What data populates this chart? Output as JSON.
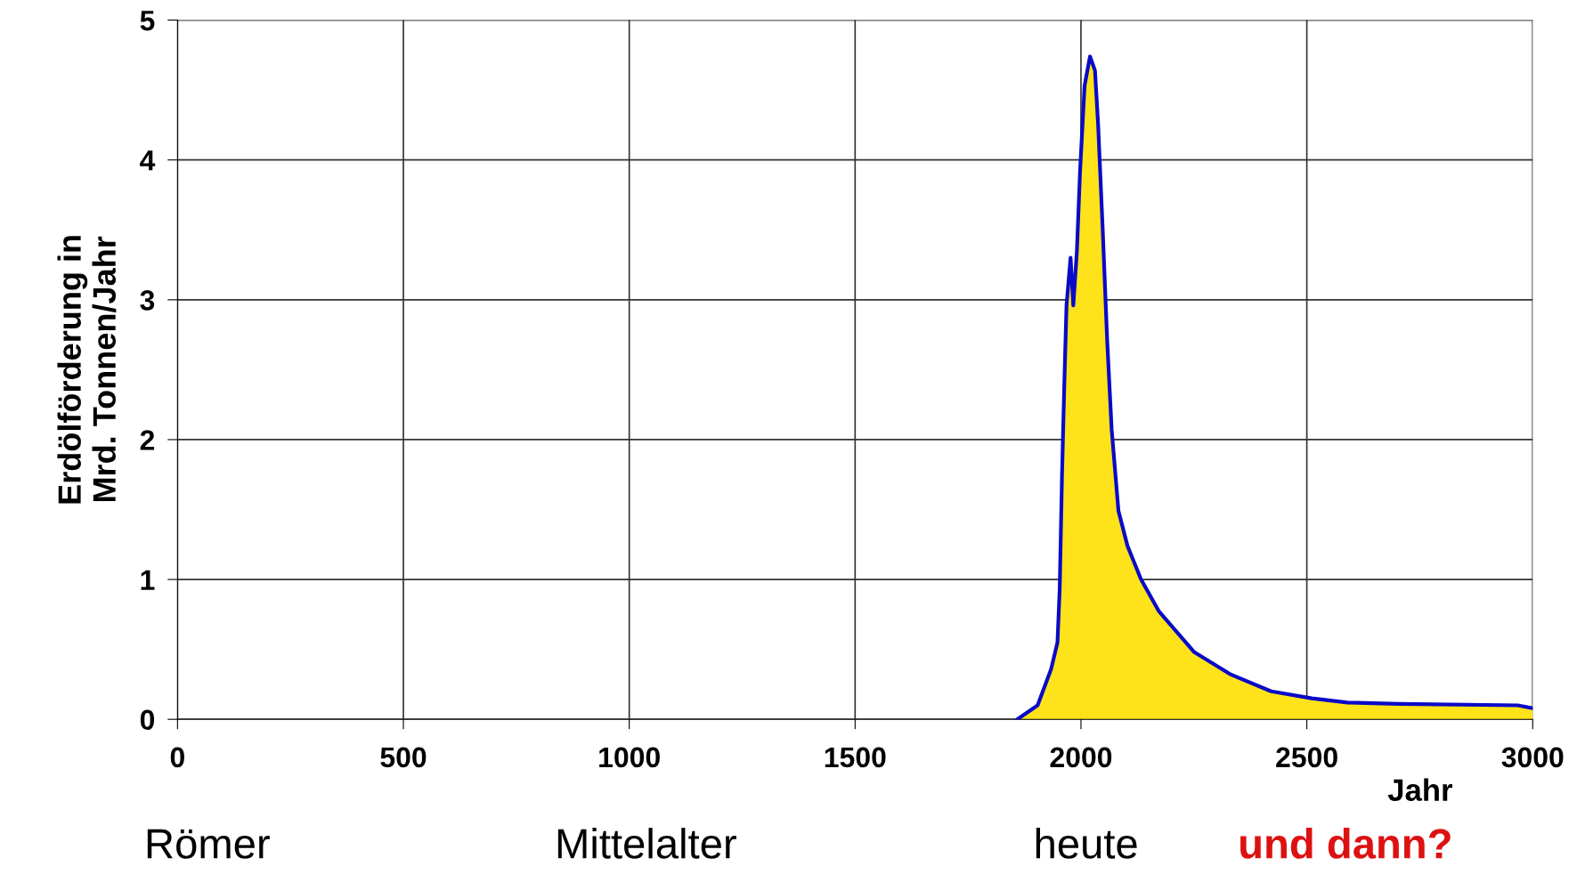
{
  "chart_data": {
    "type": "area",
    "ylabel": "Erdölförderung in\nMrd. Tonnen/Jahr",
    "xlabel": "Jahr",
    "x": [
      1859,
      1904,
      1934,
      1948,
      1953,
      1958,
      1963,
      1968,
      1977,
      1983,
      1991,
      1998,
      2008,
      2020,
      2031,
      2038,
      2048,
      2058,
      2068,
      2083,
      2103,
      2133,
      2173,
      2251,
      2332,
      2421,
      2511,
      2590,
      2703,
      2967,
      3000
    ],
    "series": [
      {
        "color": "#ffe31a",
        "values": [
          0,
          0.1,
          0.36,
          0.55,
          0.94,
          1.74,
          2.38,
          2.96,
          3.3,
          2.96,
          3.35,
          3.92,
          4.53,
          4.74,
          4.64,
          4.25,
          3.51,
          2.71,
          2.07,
          1.49,
          1.24,
          1.0,
          0.77,
          0.48,
          0.32,
          0.2,
          0.15,
          0.12,
          0.11,
          0.1,
          0.08
        ]
      }
    ],
    "xlim": [
      0,
      3000
    ],
    "xticks": [
      0,
      500,
      1000,
      1500,
      2000,
      2500,
      3000
    ],
    "ylim": [
      0,
      5
    ],
    "yticks": [
      0,
      1,
      2,
      3,
      4,
      5
    ],
    "grid": true,
    "annotations": [
      "Römer",
      "Mittelalter",
      "heute",
      "und dann?"
    ]
  }
}
